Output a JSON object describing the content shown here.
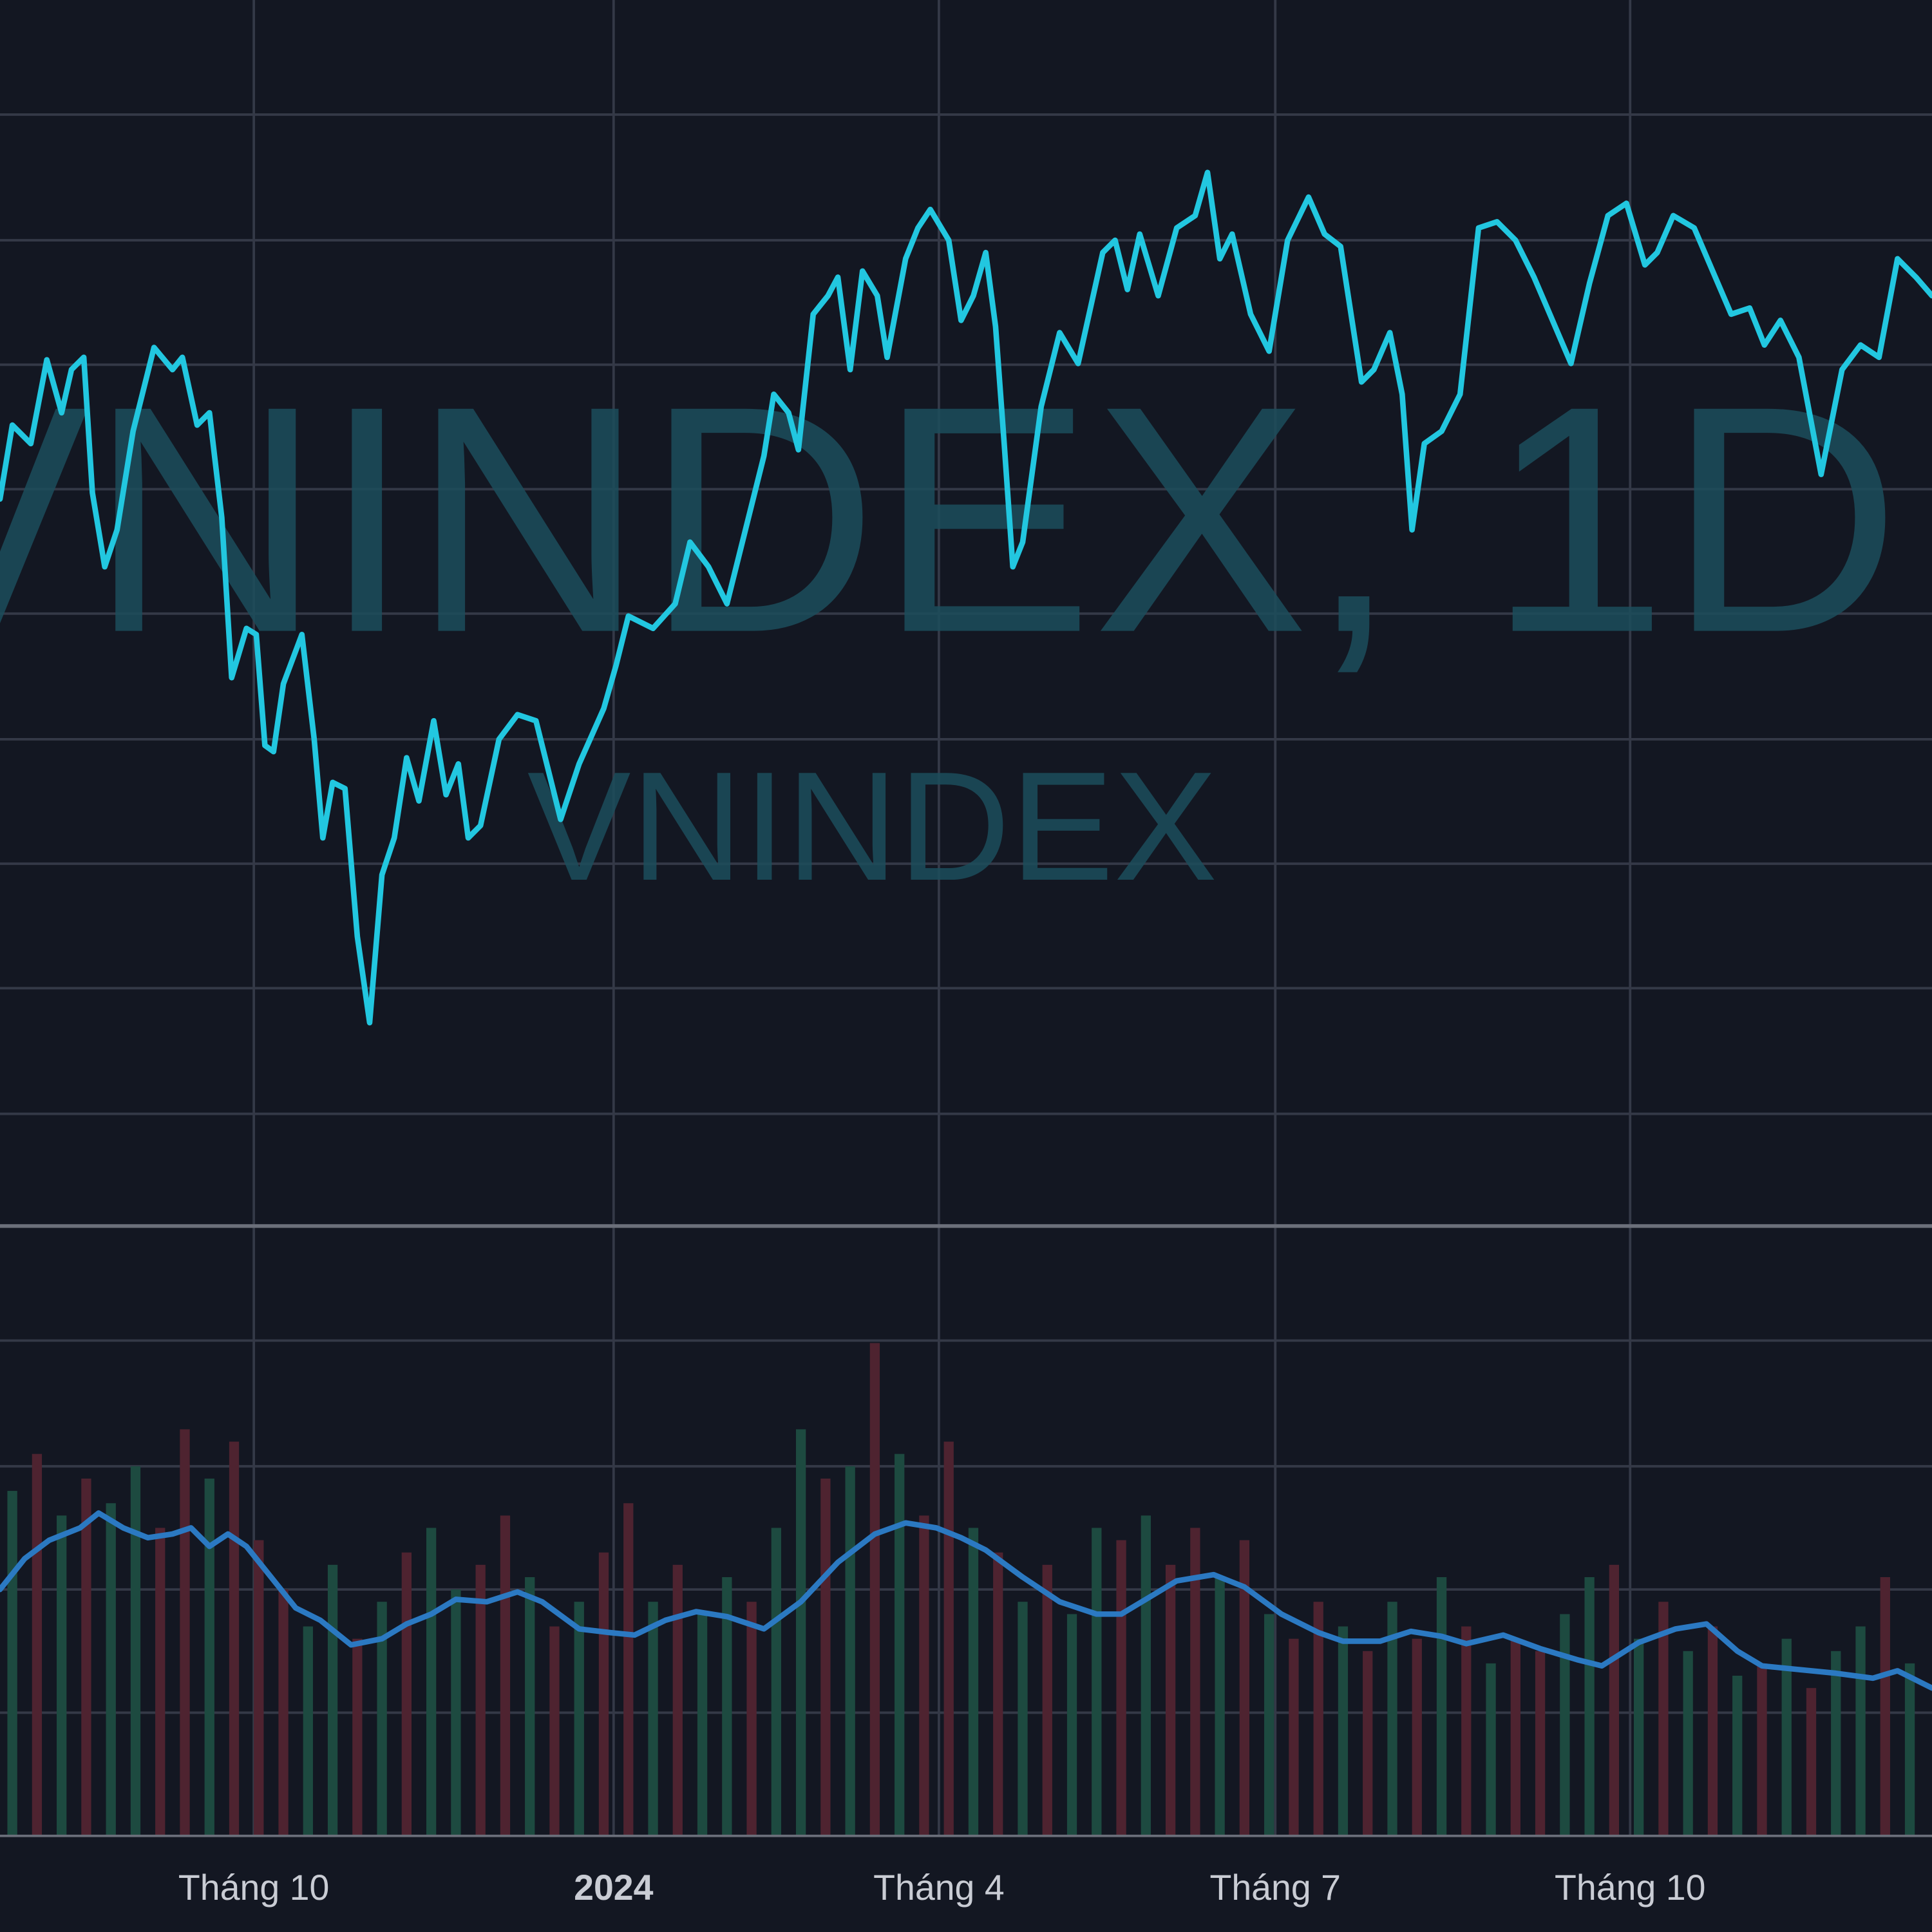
{
  "chart_data": [
    {
      "type": "line",
      "watermark": {
        "main": "VNINDEX, 1D",
        "sub": "VNINDEX"
      },
      "color": "#22c7e0",
      "xlim": [
        0,
        156.8
      ],
      "ylim": [
        0.05,
        10
      ],
      "ygrid": [
        9.07,
        8.05,
        7.04,
        6.03,
        5.02,
        4,
        2.99,
        1.98,
        0.96
      ],
      "xticks": [
        {
          "value": 20.6,
          "label": "Tháng 10"
        },
        {
          "value": 49.8,
          "label": "2024"
        },
        {
          "value": 76.2,
          "label": "Tháng 4"
        },
        {
          "value": 103.5,
          "label": "Tháng 7"
        },
        {
          "value": 132.3,
          "label": "Tháng 10"
        }
      ],
      "bold_tick": 1,
      "x": [
        0,
        1,
        2.5,
        3.8,
        5,
        5.8,
        6.8,
        7.5,
        8.5,
        9.5,
        10.8,
        12.5,
        14,
        14.8,
        16,
        17,
        18,
        18.8,
        20,
        20.8,
        21.5,
        22.2,
        23,
        24.5,
        25.5,
        26.2,
        27,
        28,
        29,
        30,
        31,
        32,
        33,
        34,
        35.2,
        36.2,
        37.2,
        38,
        39,
        40.5,
        42,
        43.5,
        44.5,
        45.5,
        47,
        49,
        50,
        51,
        53,
        54.8,
        56,
        57.5,
        59,
        60.5,
        62,
        62.8,
        64,
        64.8,
        66,
        67.2,
        68,
        69,
        70,
        71.2,
        72,
        73.5,
        74.5,
        75.5,
        77,
        78,
        79,
        80,
        80.8,
        81.5,
        82.2,
        83,
        84.5,
        86,
        87.5,
        89.5,
        90.5,
        91.5,
        92.5,
        94,
        95.5,
        97,
        98,
        99,
        100,
        101.5,
        103,
        104.5,
        106.2,
        107.5,
        108.8,
        110.5,
        111.5,
        112.8,
        113.8,
        114.6,
        115.6,
        117,
        118.5,
        120,
        121.5,
        123,
        124.5,
        126,
        127.5,
        129,
        130.5,
        132,
        133.5,
        134.5,
        135.8,
        137.5,
        139,
        140.5,
        142,
        143.2,
        144.5,
        146,
        147.8,
        149.5,
        151,
        152.5,
        154,
        155.5,
        156.8
      ],
      "values": [
        5.95,
        6.55,
        6.4,
        7.08,
        6.65,
        7,
        7.1,
        6,
        5.4,
        5.7,
        6.5,
        7.18,
        7,
        7.1,
        6.55,
        6.65,
        5.8,
        4.5,
        4.9,
        4.85,
        3.95,
        3.9,
        4.45,
        4.85,
        4,
        3.2,
        3.65,
        3.6,
        2.4,
        1.7,
        2.9,
        3.2,
        3.85,
        3.5,
        4.15,
        3.55,
        3.8,
        3.2,
        3.3,
        4,
        4.2,
        4.15,
        3.75,
        3.35,
        3.8,
        4.25,
        4.6,
        5,
        4.9,
        5.1,
        5.6,
        5.4,
        5.1,
        5.7,
        6.3,
        6.8,
        6.65,
        6.35,
        7.45,
        7.6,
        7.75,
        7,
        7.8,
        7.6,
        7.1,
        7.9,
        8.15,
        8.3,
        8.05,
        7.4,
        7.6,
        7.95,
        7.35,
        6.4,
        5.4,
        5.6,
        6.7,
        7.3,
        7.05,
        7.95,
        8.05,
        7.65,
        8.1,
        7.6,
        8.15,
        8.25,
        8.6,
        7.9,
        8.1,
        7.45,
        7.15,
        8.05,
        8.4,
        8.1,
        8,
        6.9,
        7,
        7.3,
        6.8,
        5.7,
        6.4,
        6.5,
        6.8,
        8.15,
        8.2,
        8.05,
        7.75,
        7.4,
        7.05,
        7.7,
        8.25,
        8.35,
        7.85,
        7.95,
        8.25,
        8.15,
        7.8,
        7.45,
        7.5,
        7.2,
        7.4,
        7.1,
        6.15,
        7,
        7.2,
        7.1,
        7.9,
        7.75,
        7.6
      ]
    },
    {
      "type": "bar",
      "xlim": [
        0,
        156.8
      ],
      "ylim": [
        0,
        4.95
      ],
      "ygrid": [
        1,
        2,
        3,
        4.02
      ],
      "up_color": "#1d4a40",
      "down_color": "#4e2330",
      "x": [
        1,
        3,
        5,
        7,
        9,
        11,
        13,
        15,
        17,
        19,
        21,
        23,
        25,
        27,
        29,
        31,
        33,
        35,
        37,
        39,
        41,
        43,
        45,
        47,
        49,
        51,
        53,
        55,
        57,
        59,
        61,
        63,
        65,
        67,
        69,
        71,
        73,
        75,
        77,
        79,
        81,
        83,
        85,
        87,
        89,
        91,
        93,
        95,
        97,
        99,
        101,
        103,
        105,
        107,
        109,
        111,
        113,
        115,
        117,
        119,
        121,
        123,
        125,
        127,
        129,
        131,
        133,
        135,
        137,
        139,
        141,
        143,
        145,
        147,
        149,
        151,
        153,
        155
      ],
      "values": [
        2.8,
        3.1,
        2.6,
        2.9,
        2.7,
        3.0,
        2.5,
        3.3,
        2.9,
        3.2,
        2.4,
        2.0,
        1.7,
        2.2,
        1.6,
        1.9,
        2.3,
        2.5,
        2.0,
        2.2,
        2.6,
        2.1,
        1.7,
        1.9,
        2.3,
        2.7,
        1.9,
        2.2,
        1.8,
        2.1,
        1.9,
        2.5,
        3.3,
        2.9,
        3.0,
        4.0,
        3.1,
        2.6,
        3.2,
        2.5,
        2.3,
        1.9,
        2.2,
        1.8,
        2.5,
        2.4,
        2.6,
        2.2,
        2.5,
        2.1,
        2.4,
        1.8,
        1.6,
        1.9,
        1.7,
        1.5,
        1.9,
        1.6,
        2.1,
        1.7,
        1.4,
        1.6,
        1.5,
        1.8,
        2.1,
        2.2,
        1.6,
        1.9,
        1.5,
        1.7,
        1.3,
        1.4,
        1.6,
        1.2,
        1.5,
        1.7,
        2.1,
        1.4
      ],
      "up": [
        1,
        0,
        1,
        0,
        1,
        1,
        0,
        0,
        1,
        0,
        0,
        0,
        1,
        1,
        0,
        1,
        0,
        1,
        1,
        0,
        0,
        1,
        0,
        1,
        0,
        0,
        1,
        0,
        1,
        1,
        0,
        1,
        1,
        0,
        1,
        0,
        1,
        0,
        0,
        1,
        0,
        1,
        0,
        1,
        1,
        0,
        1,
        0,
        0,
        1,
        0,
        1,
        0,
        0,
        1,
        0,
        1,
        0,
        1,
        0,
        1,
        0,
        0,
        1,
        1,
        0,
        1,
        0,
        1,
        0,
        1,
        0,
        1,
        0,
        1,
        1,
        0,
        1
      ],
      "ma": {
        "color": "#2b79c2",
        "x": [
          0,
          2,
          4,
          6.5,
          8,
          10,
          12,
          14,
          15.5,
          17,
          18.5,
          20,
          22,
          24,
          26,
          28.5,
          31,
          33,
          35,
          37,
          39.5,
          42,
          44,
          47,
          49.5,
          51.5,
          54,
          56.5,
          59,
          62,
          65,
          68,
          71,
          73.5,
          76,
          78,
          80,
          83,
          86,
          89,
          91,
          93,
          95.5,
          98.5,
          101,
          104,
          107,
          109,
          112,
          114.5,
          117,
          119,
          122,
          125,
          128,
          130,
          133,
          136,
          138.5,
          141,
          143,
          146,
          149,
          152,
          154,
          156.8
        ],
        "values": [
          2,
          2.25,
          2.4,
          2.5,
          2.62,
          2.5,
          2.42,
          2.45,
          2.5,
          2.35,
          2.45,
          2.35,
          2.1,
          1.85,
          1.75,
          1.55,
          1.6,
          1.72,
          1.8,
          1.92,
          1.9,
          1.98,
          1.9,
          1.68,
          1.65,
          1.63,
          1.75,
          1.82,
          1.78,
          1.68,
          1.9,
          2.22,
          2.45,
          2.54,
          2.5,
          2.42,
          2.32,
          2.1,
          1.9,
          1.8,
          1.8,
          1.92,
          2.07,
          2.12,
          2.02,
          1.8,
          1.65,
          1.58,
          1.58,
          1.66,
          1.62,
          1.56,
          1.63,
          1.52,
          1.43,
          1.38,
          1.57,
          1.68,
          1.72,
          1.5,
          1.38,
          1.35,
          1.32,
          1.28,
          1.34,
          1.2
        ]
      }
    }
  ]
}
